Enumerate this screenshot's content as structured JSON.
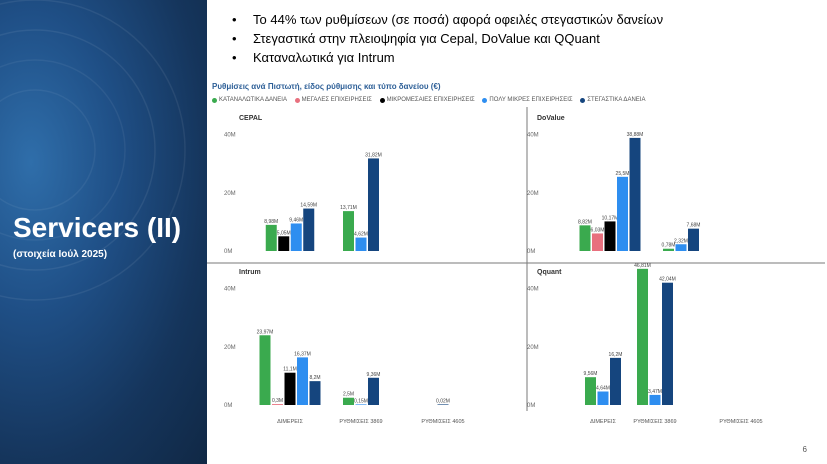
{
  "slide": {
    "title": "Servicers (II)",
    "subtitle": "(στοιχεία Ιούλ 2025)",
    "page_number": "6",
    "bullets": [
      "Το 44% των ρυθμίσεων (σε ποσά) αφορά οφειλές στεγαστικών δανείων",
      "Στεγαστικά στην πλειοψηφία για Cepal, DoValue και QQuant",
      "Καταναλωτικά για Intrum"
    ]
  },
  "colors": {
    "consumer": "#3aaa4e",
    "large": "#e8707e",
    "micro": "#000000",
    "small": "#2e8ef0",
    "housing": "#15457e",
    "title_blue": "#2d5f97",
    "left_panel": "#1c4a7c"
  },
  "chart_data": {
    "type": "bar",
    "title": "Ρυθμίσεις ανά Πιστωτή, είδος ρύθμισης και τύπο δανείου (€)",
    "legend_position": "top-left",
    "categories": [
      "ΔΙΜΕΡΕΙΣ",
      "ΡΥΘΜΙΣΕΙΣ 3869",
      "ΡΥΘΜΙΣΕΙΣ 4605"
    ],
    "series_names": [
      "ΚΑΤΑΝΑΛΩΤΙΚΑ ΔΑΝΕΙΑ",
      "ΜΕΓΑΛΕΣ ΕΠΙΧΕΙΡΗΣΕΙΣ",
      "ΜΙΚΡΟΜΕΣΑΙΕΣ ΕΠΙΧΕΙΡΗΣΕΙΣ",
      "ΠΟΛΥ ΜΙΚΡΕΣ ΕΠΙΧΕΙΡΗΣΕΙΣ",
      "ΣΤΕΓΑΣΤΙΚΑ ΔΑΝΕΙΑ"
    ],
    "y_ticks": [
      "0M",
      "20M",
      "40M"
    ],
    "ylim": [
      0,
      44
    ],
    "panels": [
      {
        "name": "CEPAL",
        "groups": [
          [
            {
              "s": 0,
              "v": 8.98,
              "label": "8,98M"
            },
            {
              "s": 2,
              "v": 5.05,
              "label": "5,05M"
            },
            {
              "s": 3,
              "v": 9.46,
              "label": "9,46M"
            },
            {
              "s": 4,
              "v": 14.59,
              "label": "14,59M"
            }
          ],
          [
            {
              "s": 0,
              "v": 13.71,
              "label": "13,71M"
            },
            {
              "s": 3,
              "v": 4.62,
              "label": "4,62M"
            },
            {
              "s": 4,
              "v": 31.82,
              "label": "31,82M"
            }
          ],
          []
        ]
      },
      {
        "name": "DoValue",
        "groups": [
          [
            {
              "s": 0,
              "v": 8.82,
              "label": "8,82M"
            },
            {
              "s": 1,
              "v": 6.03,
              "label": "6,03M"
            },
            {
              "s": 2,
              "v": 10.17,
              "label": "10,17M"
            },
            {
              "s": 3,
              "v": 25.5,
              "label": "25,5M"
            },
            {
              "s": 4,
              "v": 38.88,
              "label": "38,88M"
            }
          ],
          [
            {
              "s": 0,
              "v": 0.78,
              "label": "0,78M"
            },
            {
              "s": 3,
              "v": 2.32,
              "label": "2,32M"
            },
            {
              "s": 4,
              "v": 7.68,
              "label": "7,68M"
            }
          ],
          []
        ]
      },
      {
        "name": "Intrum",
        "groups": [
          [
            {
              "s": 0,
              "v": 23.97,
              "label": "23,97M"
            },
            {
              "s": 1,
              "v": 0.3,
              "label": "0,3M"
            },
            {
              "s": 2,
              "v": 11.1,
              "label": "11,1M"
            },
            {
              "s": 3,
              "v": 16.37,
              "label": "16,37M"
            },
            {
              "s": 4,
              "v": 8.2,
              "label": "8,2M"
            }
          ],
          [
            {
              "s": 0,
              "v": 2.5,
              "label": "2,5M"
            },
            {
              "s": 3,
              "v": 0.15,
              "label": "0,15M"
            },
            {
              "s": 4,
              "v": 9.36,
              "label": "9,36M"
            }
          ],
          [
            {
              "s": 4,
              "v": 0.02,
              "label": "0,02M"
            }
          ]
        ]
      },
      {
        "name": "Qquant",
        "groups": [
          [
            {
              "s": 0,
              "v": 9.56,
              "label": "9,56M"
            },
            {
              "s": 3,
              "v": 4.64,
              "label": "4,64M"
            },
            {
              "s": 4,
              "v": 16.2,
              "label": "16,2M"
            }
          ],
          [
            {
              "s": 0,
              "v": 46.81,
              "label": "46,81M"
            },
            {
              "s": 3,
              "v": 3.47,
              "label": "3,47M"
            },
            {
              "s": 4,
              "v": 42.04,
              "label": "42,04M"
            }
          ],
          []
        ]
      }
    ]
  }
}
